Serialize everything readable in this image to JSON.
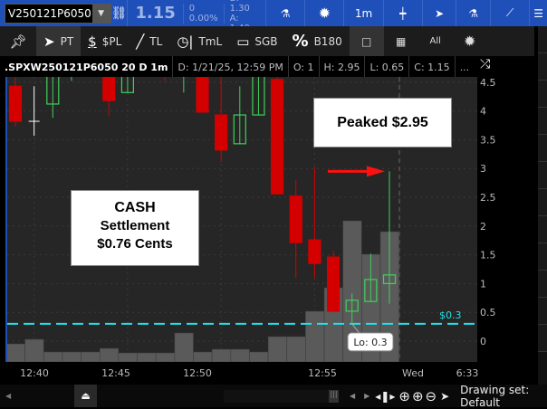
{
  "topbar": {
    "symbol": "V250121P6050",
    "last": "1.15",
    "change": "0",
    "change_pct": "0.00%",
    "bid": "B: 1.30",
    "ask": "A: 1.40",
    "timeframe": "1m",
    "accent": "#1f4fb8"
  },
  "toolbar": {
    "items": [
      {
        "icon": "pin-icon",
        "label": ""
      },
      {
        "icon": "pointer-icon",
        "label": "PT"
      },
      {
        "icon": "dollar-icon",
        "label": "$PL"
      },
      {
        "icon": "line-icon",
        "label": "TL"
      },
      {
        "icon": "clock-line-icon",
        "label": "TmL"
      },
      {
        "icon": "rectangle-icon",
        "label": "SGB"
      },
      {
        "icon": "percent-icon",
        "label": "B180"
      }
    ],
    "all_label": "All"
  },
  "info": {
    "symbol": ".SPXW250121P6050 20 D 1m",
    "date": "D: 1/21/25, 12:59 PM",
    "open": "O: 1",
    "high": "H: 2.95",
    "low": "L: 0.65",
    "close": "C: 1.15",
    "more": "..."
  },
  "chart_data": {
    "type": "candlestick",
    "ylim": [
      0,
      4.5
    ],
    "yticks": [
      "0",
      "0.5",
      "1",
      "1.5",
      "2",
      "2.5",
      "3",
      "3.5",
      "4",
      "4.5"
    ],
    "xtick_labels": [
      "12:40",
      "12:45",
      "12:50",
      "12:55",
      "Wed",
      "6:33"
    ],
    "candles": [
      {
        "t": "12:39",
        "o": 4.43,
        "h": 4.6,
        "l": 3.73,
        "c": 3.82
      },
      {
        "t": "12:40",
        "o": 3.82,
        "h": 4.43,
        "l": 3.57,
        "c": 3.82
      },
      {
        "t": "12:41",
        "o": 4.12,
        "h": 4.8,
        "l": 3.88,
        "c": 4.75
      },
      {
        "t": "12:42",
        "o": 4.7,
        "h": 4.9,
        "l": 4.52,
        "c": 4.8
      },
      {
        "t": "12:43",
        "o": 4.9,
        "h": 5.0,
        "l": 4.7,
        "c": 4.95
      },
      {
        "t": "12:44",
        "o": 4.8,
        "h": 4.9,
        "l": 3.91,
        "c": 4.18
      },
      {
        "t": "12:45",
        "o": 4.32,
        "h": 4.8,
        "l": 4.32,
        "c": 4.7
      },
      {
        "t": "12:46",
        "o": 4.9,
        "h": 5.0,
        "l": 4.7,
        "c": 4.95
      },
      {
        "t": "12:47",
        "o": 4.7,
        "h": 4.8,
        "l": 4.52,
        "c": 4.6
      },
      {
        "t": "12:48",
        "o": 4.6,
        "h": 4.8,
        "l": 4.32,
        "c": 4.7
      },
      {
        "t": "12:49",
        "o": 4.7,
        "h": 4.8,
        "l": 3.98,
        "c": 3.98
      },
      {
        "t": "12:50",
        "o": 3.93,
        "h": 4.6,
        "l": 3.11,
        "c": 3.32
      },
      {
        "t": "12:51",
        "o": 3.43,
        "h": 4.43,
        "l": 3.43,
        "c": 3.93
      },
      {
        "t": "12:52",
        "o": 3.93,
        "h": 4.8,
        "l": 3.93,
        "c": 4.7
      },
      {
        "t": "12:53",
        "o": 4.55,
        "h": 4.6,
        "l": 2.56,
        "c": 2.56
      },
      {
        "t": "12:54",
        "o": 2.52,
        "h": 2.8,
        "l": 1.1,
        "c": 1.71
      },
      {
        "t": "12:55",
        "o": 1.76,
        "h": 3.03,
        "l": 1.1,
        "c": 1.35
      },
      {
        "t": "12:56",
        "o": 1.46,
        "h": 1.56,
        "l": 0.52,
        "c": 0.52
      },
      {
        "t": "12:57",
        "o": 0.52,
        "h": 0.83,
        "l": 0.3,
        "c": 0.71
      },
      {
        "t": "12:58",
        "o": 0.69,
        "h": 1.52,
        "l": 0.69,
        "c": 1.07
      },
      {
        "t": "12:59",
        "o": 1.0,
        "h": 2.95,
        "l": 0.65,
        "c": 1.15
      }
    ],
    "volume_relative": [
      20,
      25,
      11,
      11,
      11,
      15,
      10,
      10,
      10,
      32,
      11,
      14,
      14,
      11,
      28,
      28,
      56,
      82,
      156,
      119,
      144
    ],
    "horizontal_line": {
      "value": 0.3,
      "label": "$0.3",
      "color": "#22e0e8"
    },
    "low_bubble": "Lo: 0.3",
    "colors": {
      "up": "#3fd15a",
      "down": "#d40000",
      "doji": "#ffffff",
      "volume": "#5a5a5a",
      "background": "#262626"
    }
  },
  "annotations": {
    "cash": [
      "CASH",
      "Settlement",
      "$0.76 Cents"
    ],
    "peak": "Peaked $2.95"
  },
  "bottombar": {
    "drawing_set": "Drawing set: Default"
  }
}
